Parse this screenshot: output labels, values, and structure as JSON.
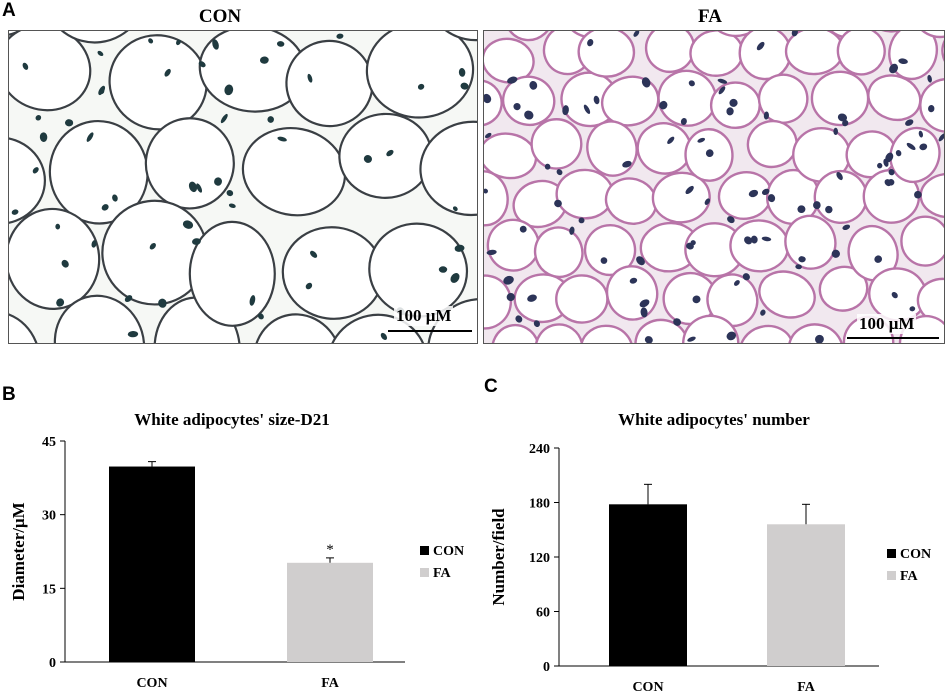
{
  "panel_a": {
    "letter": "A",
    "left_title": "CON",
    "right_title": "FA",
    "left_scale": "100 μM",
    "right_scale": "100 μM"
  },
  "chart_data": [
    {
      "letter": "B",
      "type": "bar",
      "title": "White adipocytes' size-D21",
      "xlabel": "",
      "ylabel": "Diameter/μM",
      "categories": [
        "CON",
        "FA"
      ],
      "series": [
        {
          "name": "CON",
          "values": [
            39.8,
            null
          ],
          "errors": [
            1.0,
            null
          ]
        },
        {
          "name": "FA",
          "values": [
            null,
            20.2
          ],
          "errors": [
            null,
            1.0
          ]
        }
      ],
      "ylim": [
        0,
        45
      ],
      "yticks": [
        "0",
        "15",
        "30",
        "45"
      ],
      "annotations": [
        "*"
      ],
      "legend": "right",
      "colors": {
        "CON": "#000000",
        "FA": "#d0cece"
      }
    },
    {
      "letter": "C",
      "type": "bar",
      "title": "White adipocytes' number",
      "xlabel": "",
      "ylabel": "Number/field",
      "categories": [
        "CON",
        "FA"
      ],
      "series": [
        {
          "name": "CON",
          "values": [
            178,
            null
          ],
          "errors": [
            22,
            null
          ]
        },
        {
          "name": "FA",
          "values": [
            null,
            156
          ],
          "errors": [
            null,
            22
          ]
        }
      ],
      "ylim": [
        0,
        240
      ],
      "yticks": [
        "0",
        "60",
        "120",
        "180",
        "240"
      ],
      "annotations": [],
      "legend": "right",
      "colors": {
        "CON": "#000000",
        "FA": "#d0cece"
      }
    }
  ]
}
